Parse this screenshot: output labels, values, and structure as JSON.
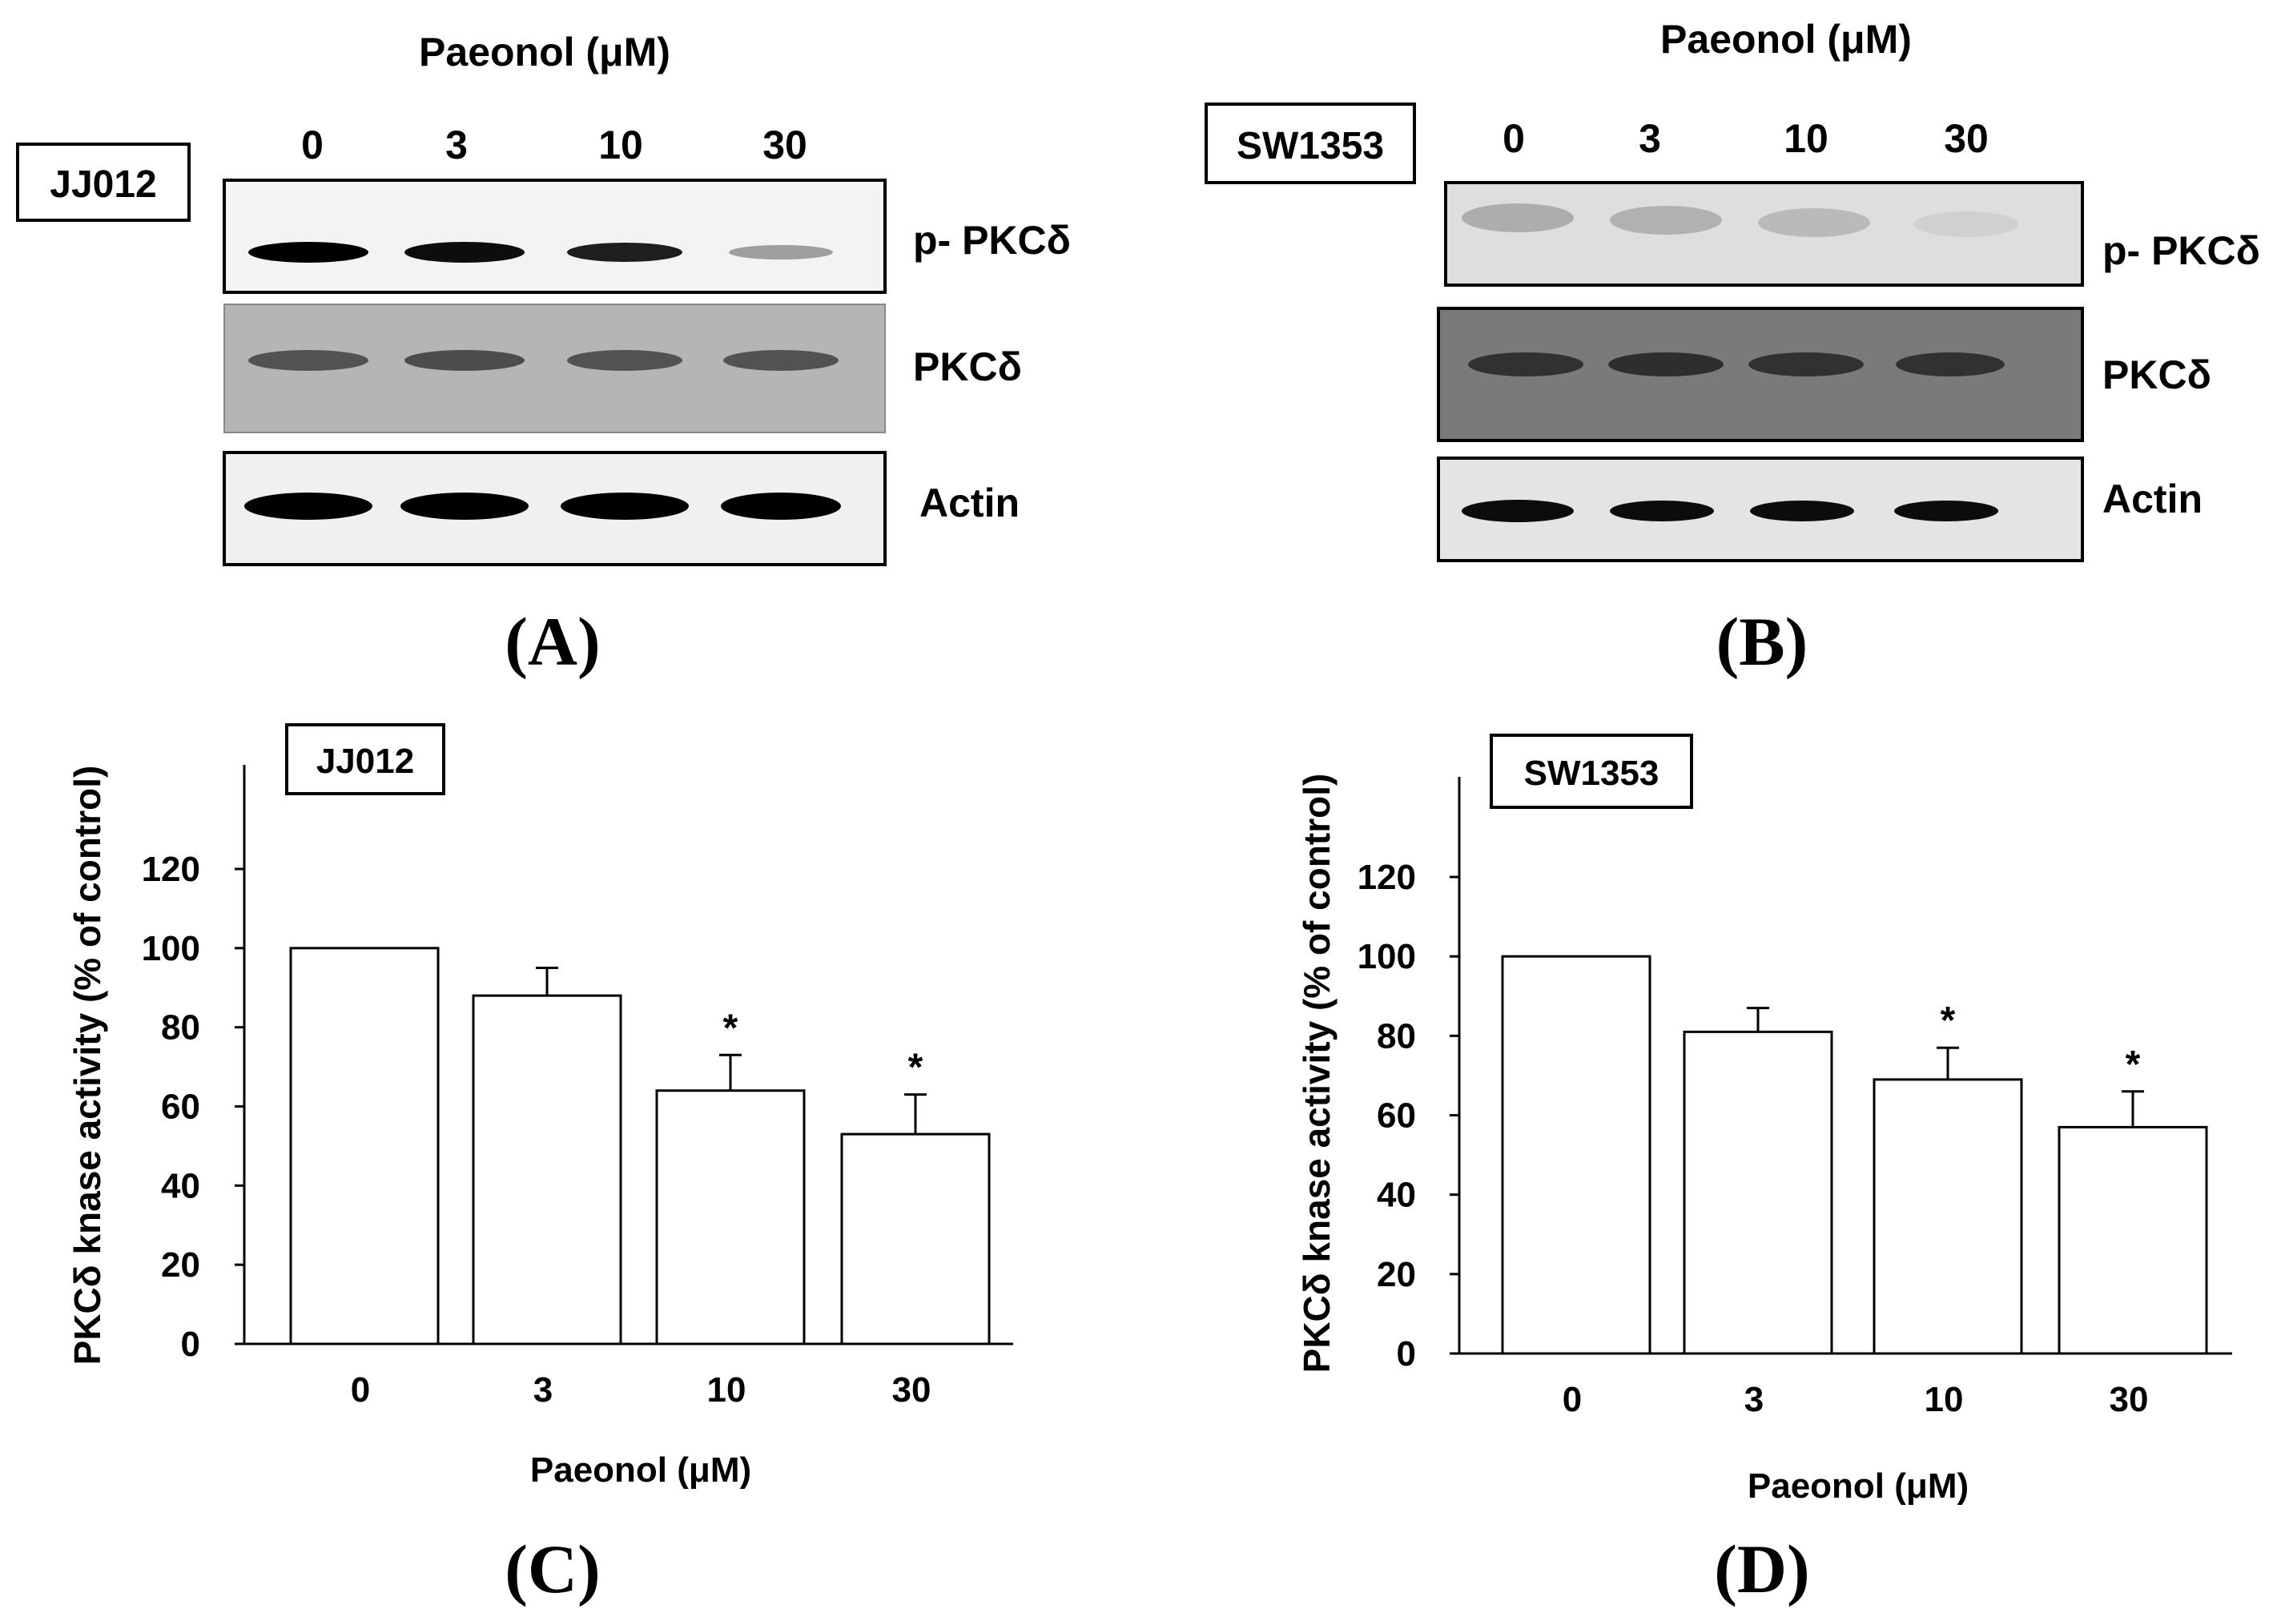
{
  "panels": [
    {
      "id": "A",
      "letter": "(A)",
      "cell_line": "JJ012",
      "treatment_label": "Paeonol (μM)",
      "lanes": [
        "0",
        "3",
        "10",
        "30"
      ],
      "blots": [
        {
          "label": "p- PKCδ",
          "background": "#f3f3f3",
          "intensity": [
            1.0,
            0.95,
            0.88,
            0.35
          ]
        },
        {
          "label": "PKCδ",
          "background": "#b5b5b5",
          "intensity": [
            0.55,
            0.58,
            0.55,
            0.55
          ]
        },
        {
          "label": "Actin",
          "background": "#f0f0f0",
          "intensity": [
            1.0,
            1.0,
            1.0,
            1.0
          ]
        }
      ]
    },
    {
      "id": "B",
      "letter": "(B)",
      "cell_line": "SW1353",
      "treatment_label": "Paeonol (μM)",
      "lanes": [
        "0",
        "3",
        "10",
        "30"
      ],
      "blots": [
        {
          "label": "p- PKCδ",
          "background": "#dedede",
          "intensity": [
            0.22,
            0.2,
            0.16,
            0.06
          ]
        },
        {
          "label": "PKCδ",
          "background": "#7a7a7a",
          "intensity": [
            0.6,
            0.62,
            0.6,
            0.6
          ]
        },
        {
          "label": "Actin",
          "background": "#e4e4e4",
          "intensity": [
            0.95,
            0.95,
            0.95,
            0.95
          ]
        }
      ]
    }
  ],
  "chart_data": [
    {
      "type": "bar",
      "id": "C",
      "letter": "(C)",
      "cell_line": "JJ012",
      "categories": [
        "0",
        "3",
        "10",
        "30"
      ],
      "values": [
        100,
        88,
        64,
        53
      ],
      "errors": [
        0,
        7,
        9,
        10
      ],
      "significance": [
        "",
        "",
        "*",
        "*"
      ],
      "xlabel": "Paeonol (μM)",
      "ylabel": "PKCδ knase activity (% of control)",
      "ylim": [
        0,
        120
      ],
      "yticks": [
        0,
        20,
        40,
        60,
        80,
        100,
        120
      ],
      "grid": false,
      "bar_color": "#ffffff"
    },
    {
      "type": "bar",
      "id": "D",
      "letter": "(D)",
      "cell_line": "SW1353",
      "categories": [
        "0",
        "3",
        "10",
        "30"
      ],
      "values": [
        100,
        81,
        69,
        57
      ],
      "errors": [
        0,
        6,
        8,
        9
      ],
      "significance": [
        "",
        "",
        "*",
        "*"
      ],
      "xlabel": "Paeonol (μM)",
      "ylabel": "PKCδ knase activity (% of control)",
      "ylim": [
        0,
        120
      ],
      "yticks": [
        0,
        20,
        40,
        60,
        80,
        100,
        120
      ],
      "grid": false,
      "bar_color": "#ffffff"
    }
  ]
}
